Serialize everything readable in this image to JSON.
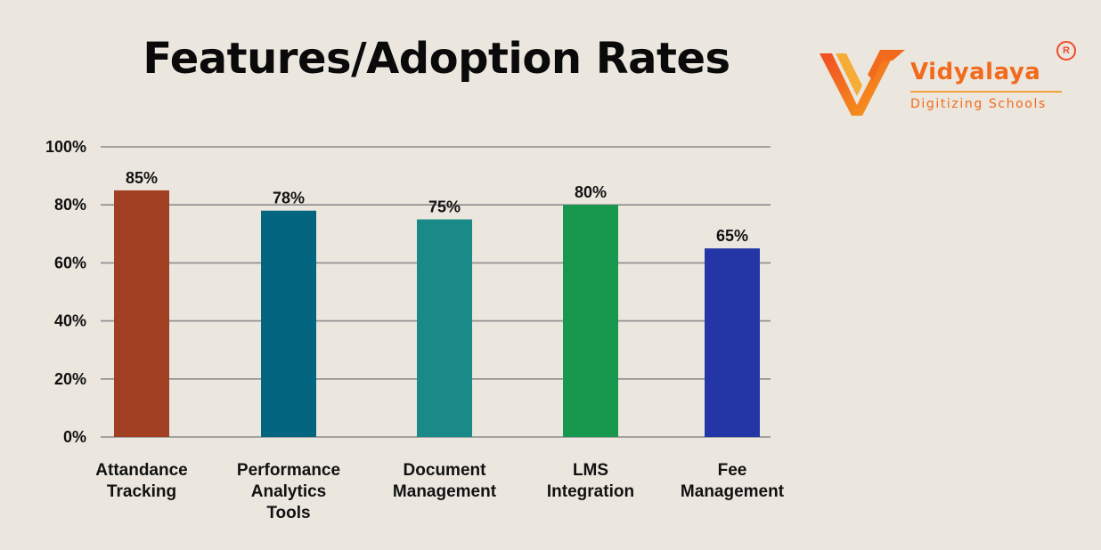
{
  "chart_data": {
    "type": "bar",
    "title": "Features/Adoption Rates",
    "categories": [
      [
        "Attandance",
        "Tracking"
      ],
      [
        "Performance",
        "Analytics",
        "Tools"
      ],
      [
        "Document",
        "Management"
      ],
      [
        "LMS",
        "Integration"
      ],
      [
        "Fee",
        "Management"
      ]
    ],
    "values": [
      85,
      78,
      75,
      80,
      65
    ],
    "data_labels": [
      "85%",
      "78%",
      "75%",
      "80%",
      "65%"
    ],
    "bar_colors": [
      "#a13f22",
      "#03657f",
      "#1a8a88",
      "#17984e",
      "#2436a6"
    ],
    "ylim": [
      0,
      100
    ],
    "yticks": [
      0,
      20,
      40,
      60,
      80,
      100
    ],
    "ytick_labels": [
      "0%",
      "20%",
      "40%",
      "60%",
      "80%",
      "100%"
    ],
    "grid": true,
    "xlabel": "",
    "ylabel": ""
  },
  "brand": {
    "name": "Vidyalaya",
    "tagline": "Digitizing Schools",
    "registered_mark": "R",
    "accent_color": "#f26a1b"
  }
}
